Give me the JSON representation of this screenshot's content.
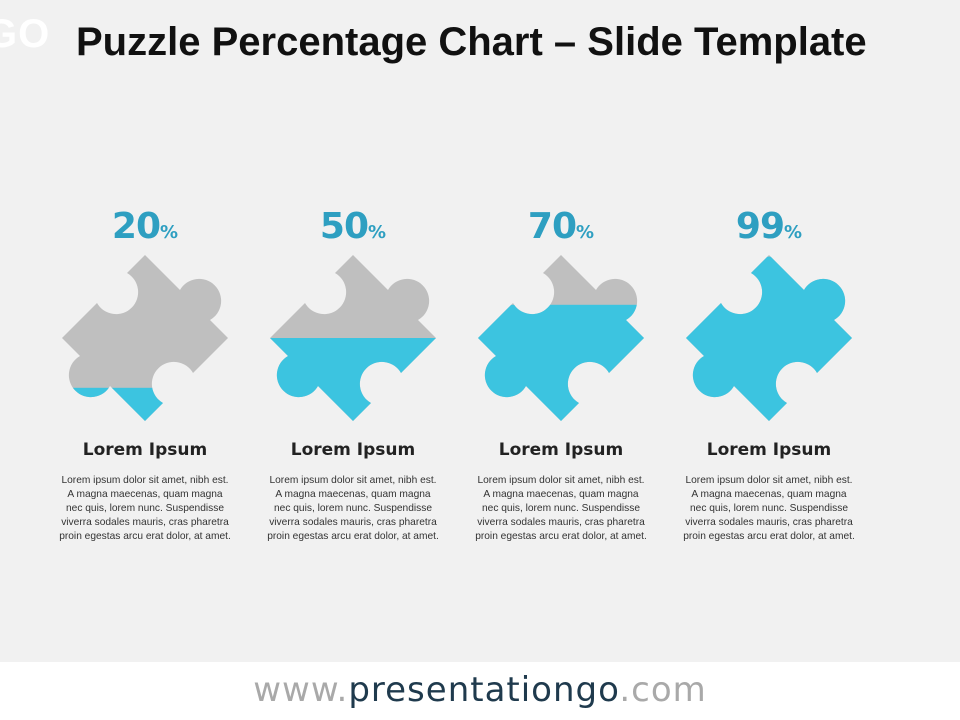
{
  "header": {
    "logo_text": "GO",
    "title": "Puzzle Percentage Chart – Slide Template"
  },
  "colors": {
    "accent": "#3CC4E0",
    "gray": "#BFBFBF",
    "percent_text": "#2E9FC1",
    "background": "#F1F1F1"
  },
  "chart_data": {
    "type": "bar",
    "categories": [
      "Lorem Ipsum",
      "Lorem Ipsum",
      "Lorem Ipsum",
      "Lorem Ipsum"
    ],
    "values": [
      20,
      50,
      70,
      99
    ],
    "unit": "%"
  },
  "items": [
    {
      "value": "20",
      "unit": "%",
      "fill": 0.2,
      "label": "Lorem Ipsum",
      "text": "Lorem ipsum dolor sit amet, nibh est. A magna maecenas, quam magna nec quis, lorem nunc. Suspendisse viverra sodales mauris, cras pharetra proin egestas arcu erat dolor, at amet."
    },
    {
      "value": "50",
      "unit": "%",
      "fill": 0.5,
      "label": "Lorem Ipsum",
      "text": "Lorem ipsum dolor sit amet, nibh est. A magna maecenas, quam magna nec quis, lorem nunc. Suspendisse viverra sodales mauris, cras pharetra proin egestas arcu erat dolor, at amet."
    },
    {
      "value": "70",
      "unit": "%",
      "fill": 0.7,
      "label": "Lorem Ipsum",
      "text": "Lorem ipsum dolor sit amet, nibh est. A magna maecenas, quam magna nec quis, lorem nunc. Suspendisse viverra sodales mauris, cras pharetra proin egestas arcu erat dolor, at amet."
    },
    {
      "value": "99",
      "unit": "%",
      "fill": 0.99,
      "label": "Lorem Ipsum",
      "text": "Lorem ipsum dolor sit amet, nibh est. A magna maecenas, quam magna nec quis, lorem nunc. Suspendisse viverra sodales mauris, cras pharetra proin egestas arcu erat dolor, at amet."
    }
  ],
  "footer": {
    "prefix": "www.",
    "domain": "presentationgo",
    "suffix": ".com"
  }
}
